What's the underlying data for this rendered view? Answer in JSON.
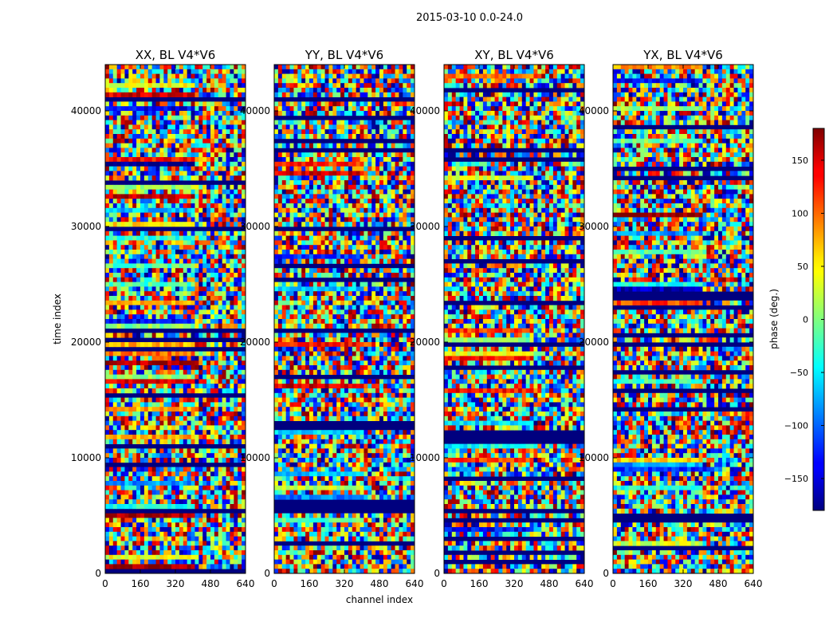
{
  "figure": {
    "suptitle": "2015-03-10 0.0-24.0"
  },
  "chart_data": {
    "type": "heatmap",
    "panels": [
      {
        "title": "XX, BL V4*V6"
      },
      {
        "title": "YY, BL V4*V6"
      },
      {
        "title": "XY, BL V4*V6"
      },
      {
        "title": "YX, BL V4*V6"
      }
    ],
    "xlabel": "channel index",
    "ylabel": "time index",
    "xlim": [
      0,
      640
    ],
    "ylim": [
      0,
      44000
    ],
    "xticks": [
      0,
      160,
      320,
      480,
      640
    ],
    "yticks": [
      0,
      10000,
      20000,
      30000,
      40000
    ],
    "colorbar": {
      "label": "phase (deg.)",
      "range": [
        -180,
        180
      ],
      "ticks": [
        -150,
        -100,
        -50,
        0,
        50,
        100,
        150
      ],
      "colormap": "jet"
    },
    "flagged_color": "#00007f"
  }
}
